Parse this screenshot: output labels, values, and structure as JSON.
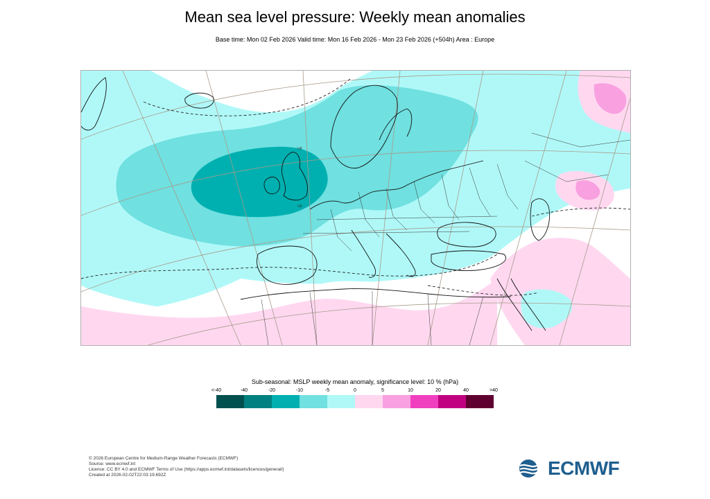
{
  "header": {
    "title": "Mean sea level pressure: Weekly mean anomalies",
    "subtitle": "Base time: Mon 02 Feb 2026 Valid time: Mon 16 Feb 2026 - Mon 23 Feb 2026 (+504h) Area : Europe"
  },
  "map": {
    "region": "Europe",
    "place_labels": [
      "UK",
      "UK"
    ],
    "anomaly_features": [
      {
        "kind": "negative low",
        "location": "west of British Isles",
        "class": "-20 to -10"
      },
      {
        "kind": "negative",
        "location": "North Atlantic to Scandinavia",
        "class": "-10 to -5"
      },
      {
        "kind": "positive",
        "location": "Southern Atlantic / North Africa",
        "class": "0 to 5"
      },
      {
        "kind": "positive",
        "location": "Eastern Mediterranean / Middle East",
        "class": "0 to 5"
      },
      {
        "kind": "positive",
        "location": "Northern Russia",
        "class": "5 to 10"
      }
    ]
  },
  "legend": {
    "title": "Sub-seasonal: MSLP weekly mean anomaly, significance level: 10 % (hPa)",
    "ticks": [
      "<-40",
      "-40",
      "-20",
      "-10",
      "-5",
      "0",
      "5",
      "10",
      "20",
      "40",
      ">40"
    ],
    "colors": [
      "#005050",
      "#008080",
      "#00b0b0",
      "#70e0e0",
      "#b0f8f8",
      "#ffd8f0",
      "#f8a0e0",
      "#f040c0",
      "#c00080",
      "#600030"
    ]
  },
  "footer": {
    "lines": [
      "© 2026 European Centre for Medium-Range Weather Forecasts (ECMWF)",
      "Source: www.ecmwf.int",
      "Licence: CC BY 4.0 and ECMWF Terms of Use (https://apps.ecmwf.int/datasets/licences/general/)",
      "Created at 2026-02-02T22:03:19.692Z"
    ]
  },
  "logo": {
    "text": "ECMWF",
    "color": "#1f5f8f"
  }
}
